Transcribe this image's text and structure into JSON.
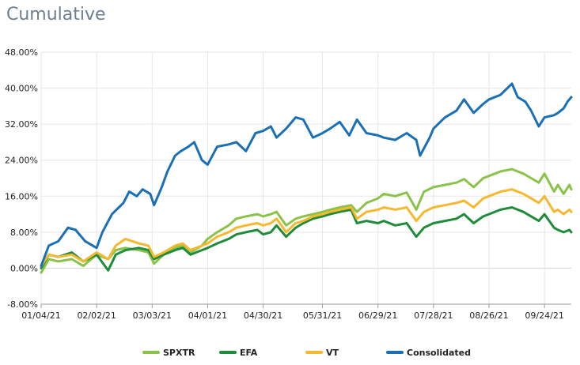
{
  "header": {
    "title": "Cumulative"
  },
  "chart_data": {
    "type": "line",
    "title": "Cumulative",
    "xlabel": "",
    "ylabel": "",
    "ylim": [
      -8,
      48
    ],
    "yticks": [
      -8,
      0,
      8,
      16,
      24,
      32,
      40,
      48
    ],
    "ytick_labels": [
      "-8.00%",
      "0.00%",
      "8.00%",
      "16.00%",
      "24.00%",
      "32.00%",
      "40.00%",
      "48.00%"
    ],
    "xlim": [
      "2021-01-04",
      "2021-10-08"
    ],
    "xticks": [
      "2021-01-04",
      "2021-02-02",
      "2021-03-03",
      "2021-04-01",
      "2021-04-30",
      "2021-05-31",
      "2021-06-29",
      "2021-07-28",
      "2021-08-26",
      "2021-09-24"
    ],
    "xtick_labels": [
      "01/04/21",
      "02/02/21",
      "03/03/21",
      "04/01/21",
      "04/30/21",
      "05/31/21",
      "06/29/21",
      "07/28/21",
      "08/26/21",
      "09/24/21"
    ],
    "grid": true,
    "legend_position": "bottom",
    "series": [
      {
        "name": "SPXTR",
        "color": "#8bc34a",
        "points": [
          [
            "2021-01-04",
            -1.0
          ],
          [
            "2021-01-08",
            2.0
          ],
          [
            "2021-01-13",
            1.5
          ],
          [
            "2021-01-20",
            2.0
          ],
          [
            "2021-01-26",
            0.5
          ],
          [
            "2021-02-02",
            3.0
          ],
          [
            "2021-02-08",
            2.0
          ],
          [
            "2021-02-12",
            4.0
          ],
          [
            "2021-02-17",
            4.5
          ],
          [
            "2021-02-24",
            4.0
          ],
          [
            "2021-03-01",
            3.5
          ],
          [
            "2021-03-04",
            1.0
          ],
          [
            "2021-03-09",
            3.0
          ],
          [
            "2021-03-15",
            4.5
          ],
          [
            "2021-03-19",
            5.0
          ],
          [
            "2021-03-23",
            3.5
          ],
          [
            "2021-03-29",
            5.0
          ],
          [
            "2021-04-01",
            6.5
          ],
          [
            "2021-04-06",
            8.0
          ],
          [
            "2021-04-12",
            9.5
          ],
          [
            "2021-04-16",
            11.0
          ],
          [
            "2021-04-21",
            11.5
          ],
          [
            "2021-04-27",
            12.0
          ],
          [
            "2021-04-30",
            11.5
          ],
          [
            "2021-05-04",
            12.0
          ],
          [
            "2021-05-07",
            12.5
          ],
          [
            "2021-05-12",
            9.5
          ],
          [
            "2021-05-17",
            11.0
          ],
          [
            "2021-05-21",
            11.5
          ],
          [
            "2021-05-26",
            12.0
          ],
          [
            "2021-05-31",
            12.5
          ],
          [
            "2021-06-04",
            13.0
          ],
          [
            "2021-06-09",
            13.5
          ],
          [
            "2021-06-15",
            14.0
          ],
          [
            "2021-06-18",
            12.5
          ],
          [
            "2021-06-23",
            14.5
          ],
          [
            "2021-06-29",
            15.5
          ],
          [
            "2021-07-02",
            16.5
          ],
          [
            "2021-07-08",
            16.0
          ],
          [
            "2021-07-14",
            16.8
          ],
          [
            "2021-07-19",
            13.0
          ],
          [
            "2021-07-23",
            17.0
          ],
          [
            "2021-07-28",
            18.0
          ],
          [
            "2021-08-03",
            18.5
          ],
          [
            "2021-08-09",
            19.0
          ],
          [
            "2021-08-13",
            19.8
          ],
          [
            "2021-08-18",
            18.0
          ],
          [
            "2021-08-23",
            20.0
          ],
          [
            "2021-08-26",
            20.5
          ],
          [
            "2021-09-01",
            21.5
          ],
          [
            "2021-09-07",
            22.0
          ],
          [
            "2021-09-13",
            21.0
          ],
          [
            "2021-09-17",
            20.0
          ],
          [
            "2021-09-21",
            19.0
          ],
          [
            "2021-09-24",
            21.0
          ],
          [
            "2021-09-29",
            17.0
          ],
          [
            "2021-10-01",
            18.5
          ],
          [
            "2021-10-04",
            16.5
          ],
          [
            "2021-10-07",
            18.5
          ],
          [
            "2021-10-08",
            17.5
          ]
        ]
      },
      {
        "name": "EFA",
        "color": "#1f8c3b",
        "points": [
          [
            "2021-01-04",
            0.0
          ],
          [
            "2021-01-08",
            3.0
          ],
          [
            "2021-01-13",
            2.5
          ],
          [
            "2021-01-20",
            3.5
          ],
          [
            "2021-01-26",
            1.5
          ],
          [
            "2021-02-02",
            3.0
          ],
          [
            "2021-02-08",
            -0.5
          ],
          [
            "2021-02-12",
            3.0
          ],
          [
            "2021-02-17",
            4.0
          ],
          [
            "2021-02-24",
            4.5
          ],
          [
            "2021-03-01",
            4.0
          ],
          [
            "2021-03-04",
            2.0
          ],
          [
            "2021-03-09",
            3.0
          ],
          [
            "2021-03-15",
            4.0
          ],
          [
            "2021-03-19",
            4.5
          ],
          [
            "2021-03-23",
            3.0
          ],
          [
            "2021-03-29",
            4.0
          ],
          [
            "2021-04-01",
            4.5
          ],
          [
            "2021-04-06",
            5.5
          ],
          [
            "2021-04-12",
            6.5
          ],
          [
            "2021-04-16",
            7.5
          ],
          [
            "2021-04-21",
            8.0
          ],
          [
            "2021-04-27",
            8.5
          ],
          [
            "2021-04-30",
            7.5
          ],
          [
            "2021-05-04",
            8.0
          ],
          [
            "2021-05-07",
            9.5
          ],
          [
            "2021-05-12",
            7.0
          ],
          [
            "2021-05-17",
            9.0
          ],
          [
            "2021-05-21",
            10.0
          ],
          [
            "2021-05-26",
            11.0
          ],
          [
            "2021-05-31",
            11.5
          ],
          [
            "2021-06-04",
            12.0
          ],
          [
            "2021-06-09",
            12.5
          ],
          [
            "2021-06-15",
            13.0
          ],
          [
            "2021-06-18",
            10.0
          ],
          [
            "2021-06-23",
            10.5
          ],
          [
            "2021-06-29",
            10.0
          ],
          [
            "2021-07-02",
            10.5
          ],
          [
            "2021-07-08",
            9.5
          ],
          [
            "2021-07-14",
            10.0
          ],
          [
            "2021-07-19",
            7.0
          ],
          [
            "2021-07-23",
            9.0
          ],
          [
            "2021-07-28",
            10.0
          ],
          [
            "2021-08-03",
            10.5
          ],
          [
            "2021-08-09",
            11.0
          ],
          [
            "2021-08-13",
            12.0
          ],
          [
            "2021-08-18",
            10.0
          ],
          [
            "2021-08-23",
            11.5
          ],
          [
            "2021-08-26",
            12.0
          ],
          [
            "2021-09-01",
            13.0
          ],
          [
            "2021-09-07",
            13.5
          ],
          [
            "2021-09-13",
            12.5
          ],
          [
            "2021-09-17",
            11.5
          ],
          [
            "2021-09-21",
            10.5
          ],
          [
            "2021-09-24",
            12.0
          ],
          [
            "2021-09-29",
            9.0
          ],
          [
            "2021-10-01",
            8.5
          ],
          [
            "2021-10-04",
            8.0
          ],
          [
            "2021-10-07",
            8.5
          ],
          [
            "2021-10-08",
            8.0
          ]
        ]
      },
      {
        "name": "VT",
        "color": "#f5b82e",
        "points": [
          [
            "2021-01-04",
            0.5
          ],
          [
            "2021-01-08",
            3.0
          ],
          [
            "2021-01-13",
            2.5
          ],
          [
            "2021-01-20",
            3.0
          ],
          [
            "2021-01-26",
            1.5
          ],
          [
            "2021-02-02",
            3.5
          ],
          [
            "2021-02-08",
            2.0
          ],
          [
            "2021-02-12",
            5.0
          ],
          [
            "2021-02-17",
            6.5
          ],
          [
            "2021-02-24",
            5.5
          ],
          [
            "2021-03-01",
            5.0
          ],
          [
            "2021-03-04",
            2.5
          ],
          [
            "2021-03-09",
            3.5
          ],
          [
            "2021-03-15",
            5.0
          ],
          [
            "2021-03-19",
            5.5
          ],
          [
            "2021-03-23",
            4.0
          ],
          [
            "2021-03-29",
            5.0
          ],
          [
            "2021-04-01",
            5.5
          ],
          [
            "2021-04-06",
            7.0
          ],
          [
            "2021-04-12",
            8.0
          ],
          [
            "2021-04-16",
            9.0
          ],
          [
            "2021-04-21",
            9.5
          ],
          [
            "2021-04-27",
            10.0
          ],
          [
            "2021-04-30",
            9.5
          ],
          [
            "2021-05-04",
            10.0
          ],
          [
            "2021-05-07",
            11.0
          ],
          [
            "2021-05-12",
            8.0
          ],
          [
            "2021-05-17",
            10.0
          ],
          [
            "2021-05-21",
            10.5
          ],
          [
            "2021-05-26",
            11.5
          ],
          [
            "2021-05-31",
            12.0
          ],
          [
            "2021-06-04",
            12.5
          ],
          [
            "2021-06-09",
            13.0
          ],
          [
            "2021-06-15",
            13.5
          ],
          [
            "2021-06-18",
            11.0
          ],
          [
            "2021-06-23",
            12.5
          ],
          [
            "2021-06-29",
            13.0
          ],
          [
            "2021-07-02",
            13.5
          ],
          [
            "2021-07-08",
            13.0
          ],
          [
            "2021-07-14",
            13.5
          ],
          [
            "2021-07-19",
            10.5
          ],
          [
            "2021-07-23",
            12.5
          ],
          [
            "2021-07-28",
            13.5
          ],
          [
            "2021-08-03",
            14.0
          ],
          [
            "2021-08-09",
            14.5
          ],
          [
            "2021-08-13",
            15.0
          ],
          [
            "2021-08-18",
            13.5
          ],
          [
            "2021-08-23",
            15.5
          ],
          [
            "2021-08-26",
            16.0
          ],
          [
            "2021-09-01",
            17.0
          ],
          [
            "2021-09-07",
            17.5
          ],
          [
            "2021-09-13",
            16.5
          ],
          [
            "2021-09-17",
            15.5
          ],
          [
            "2021-09-21",
            14.5
          ],
          [
            "2021-09-24",
            16.0
          ],
          [
            "2021-09-29",
            12.5
          ],
          [
            "2021-10-01",
            13.0
          ],
          [
            "2021-10-04",
            12.0
          ],
          [
            "2021-10-07",
            13.0
          ],
          [
            "2021-10-08",
            12.5
          ]
        ]
      },
      {
        "name": "Consolidated",
        "color": "#1b6fb4",
        "points": [
          [
            "2021-01-04",
            0.5
          ],
          [
            "2021-01-08",
            5.0
          ],
          [
            "2021-01-13",
            6.0
          ],
          [
            "2021-01-18",
            9.0
          ],
          [
            "2021-01-22",
            8.5
          ],
          [
            "2021-01-27",
            6.0
          ],
          [
            "2021-02-02",
            4.5
          ],
          [
            "2021-02-05",
            8.0
          ],
          [
            "2021-02-10",
            12.0
          ],
          [
            "2021-02-16",
            14.5
          ],
          [
            "2021-02-19",
            17.0
          ],
          [
            "2021-02-23",
            16.0
          ],
          [
            "2021-02-26",
            17.5
          ],
          [
            "2021-03-02",
            16.5
          ],
          [
            "2021-03-04",
            14.0
          ],
          [
            "2021-03-08",
            18.0
          ],
          [
            "2021-03-11",
            21.5
          ],
          [
            "2021-03-15",
            25.0
          ],
          [
            "2021-03-18",
            26.0
          ],
          [
            "2021-03-22",
            27.0
          ],
          [
            "2021-03-25",
            28.0
          ],
          [
            "2021-03-29",
            24.0
          ],
          [
            "2021-04-01",
            23.0
          ],
          [
            "2021-04-06",
            27.0
          ],
          [
            "2021-04-12",
            27.5
          ],
          [
            "2021-04-16",
            28.0
          ],
          [
            "2021-04-21",
            26.0
          ],
          [
            "2021-04-26",
            30.0
          ],
          [
            "2021-04-30",
            30.5
          ],
          [
            "2021-05-04",
            31.5
          ],
          [
            "2021-05-07",
            29.0
          ],
          [
            "2021-05-12",
            31.0
          ],
          [
            "2021-05-17",
            33.5
          ],
          [
            "2021-05-21",
            33.0
          ],
          [
            "2021-05-26",
            29.0
          ],
          [
            "2021-05-31",
            30.0
          ],
          [
            "2021-06-04",
            31.0
          ],
          [
            "2021-06-09",
            32.5
          ],
          [
            "2021-06-14",
            29.5
          ],
          [
            "2021-06-18",
            33.0
          ],
          [
            "2021-06-23",
            30.0
          ],
          [
            "2021-06-29",
            29.5
          ],
          [
            "2021-07-02",
            29.0
          ],
          [
            "2021-07-08",
            28.5
          ],
          [
            "2021-07-14",
            30.0
          ],
          [
            "2021-07-19",
            28.5
          ],
          [
            "2021-07-21",
            25.0
          ],
          [
            "2021-07-26",
            29.0
          ],
          [
            "2021-07-28",
            31.0
          ],
          [
            "2021-08-03",
            33.5
          ],
          [
            "2021-08-09",
            35.0
          ],
          [
            "2021-08-13",
            37.5
          ],
          [
            "2021-08-18",
            34.5
          ],
          [
            "2021-08-23",
            36.5
          ],
          [
            "2021-08-26",
            37.5
          ],
          [
            "2021-09-01",
            38.5
          ],
          [
            "2021-09-07",
            41.0
          ],
          [
            "2021-09-10",
            38.0
          ],
          [
            "2021-09-14",
            37.0
          ],
          [
            "2021-09-17",
            35.0
          ],
          [
            "2021-09-21",
            31.5
          ],
          [
            "2021-09-24",
            33.5
          ],
          [
            "2021-09-29",
            34.0
          ],
          [
            "2021-10-01",
            34.5
          ],
          [
            "2021-10-04",
            35.5
          ],
          [
            "2021-10-06",
            37.0
          ],
          [
            "2021-10-08",
            38.0
          ]
        ]
      }
    ]
  }
}
